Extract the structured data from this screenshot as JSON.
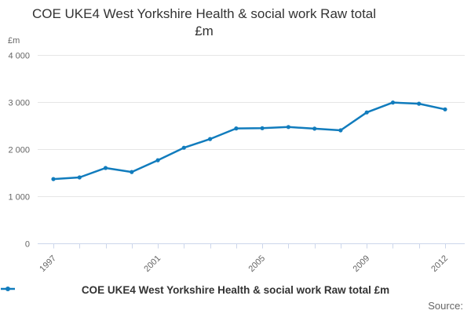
{
  "title": {
    "full": "COE UKE4 West Yorkshire Health & social work Raw total £m",
    "line1": "COE UKE4 West Yorkshire Health & social work Raw total",
    "line2": "£m"
  },
  "y_axis_unit": "£m",
  "legend": {
    "label": "COE UKE4 West Yorkshire Health & social work Raw total £m"
  },
  "source_label": "Source:",
  "colors": {
    "line": "#117cbd",
    "grid": "#e6e6e6",
    "axis": "#ccd6eb",
    "text_muted": "#666666",
    "text_dark": "#333333"
  },
  "chart_data": {
    "type": "line",
    "title": "COE UKE4 West Yorkshire Health & social work Raw total £m",
    "xlabel": "",
    "ylabel": "£m",
    "x": [
      1997,
      1998,
      1999,
      2000,
      2001,
      2002,
      2003,
      2004,
      2005,
      2006,
      2007,
      2008,
      2009,
      2010,
      2011,
      2012
    ],
    "series": [
      {
        "name": "COE UKE4 West Yorkshire Health & social work Raw total £m",
        "values": [
          1365,
          1400,
          1600,
          1515,
          1765,
          2030,
          2215,
          2440,
          2445,
          2470,
          2435,
          2400,
          2780,
          2990,
          2965,
          2845
        ]
      }
    ],
    "ylim": [
      0,
      4000
    ],
    "y_ticks": [
      0,
      1000,
      2000,
      3000,
      4000
    ],
    "y_tick_labels": [
      "0",
      "1 000",
      "2 000",
      "3 000",
      "4 000"
    ],
    "x_tick_labels_shown": [
      "1997",
      "2001",
      "2005",
      "2009",
      "2012"
    ],
    "grid": "horizontal",
    "legend_position": "bottom",
    "marker": "circle"
  }
}
